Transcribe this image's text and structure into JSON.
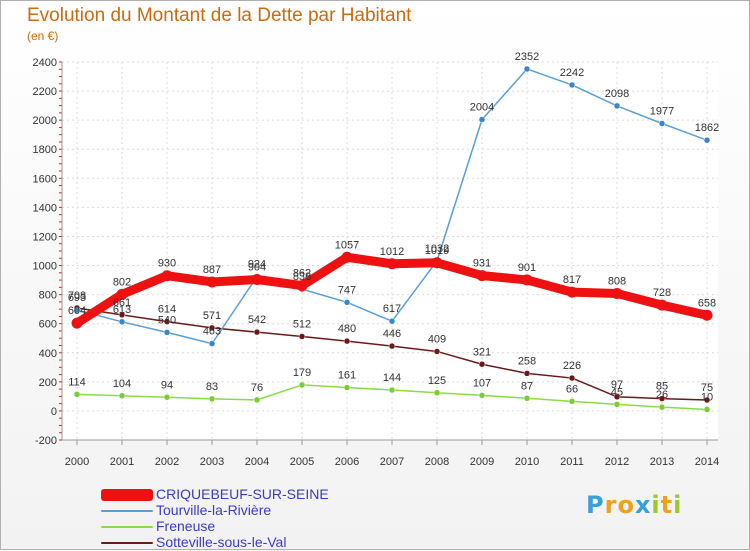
{
  "title": "Evolution du Montant de la Dette par Habitant",
  "unit_label": "(en €)",
  "logo": {
    "letters": [
      "P",
      "r",
      "o",
      "x",
      "i",
      "t",
      "i"
    ],
    "colors": [
      "#3aa0d8",
      "#f0a020",
      "#f0a020",
      "#3aa0d8",
      "#9ac830",
      "#f0a020",
      "#9ac830"
    ]
  },
  "chart_data": {
    "type": "line",
    "x": [
      "2000",
      "2001",
      "2002",
      "2003",
      "2004",
      "2005",
      "2006",
      "2007",
      "2008",
      "2009",
      "2010",
      "2011",
      "2012",
      "2013",
      "2014"
    ],
    "ylim": [
      -200,
      2400
    ],
    "yticks": [
      "-200",
      "0",
      "200",
      "400",
      "600",
      "800",
      "1000",
      "1200",
      "1400",
      "1600",
      "1800",
      "2000",
      "2200",
      "2400"
    ],
    "grid": true,
    "legend_position": "bottom-left",
    "series": [
      {
        "name": "CRIQUEBEUF-SUR-SEINE",
        "color": "#ee1111",
        "values": [
          604,
          802,
          930,
          887,
          904,
          862,
          1057,
          1012,
          1019,
          931,
          901,
          817,
          808,
          728,
          658
        ],
        "labels": [
          "604",
          "802",
          "930",
          "887",
          "904",
          "862",
          "1057",
          "1012",
          "1019",
          "931",
          "901",
          "817",
          "808",
          "728",
          "658"
        ]
      },
      {
        "name": "Tourville-la-Rivière",
        "color": "#5a9fd4",
        "values": [
          693,
          613,
          540,
          463,
          924,
          838,
          747,
          617,
          1032,
          2004,
          2352,
          2242,
          2098,
          1977,
          1862
        ],
        "labels": [
          "693",
          "613",
          "540",
          "463",
          "924",
          "838",
          "747",
          "617",
          "1032",
          "2004",
          "2352",
          "2242",
          "2098",
          "1977",
          "1862"
        ]
      },
      {
        "name": "Freneuse",
        "color": "#88dd44",
        "values": [
          114,
          104,
          94,
          83,
          76,
          179,
          161,
          144,
          125,
          107,
          87,
          66,
          45,
          26,
          10
        ],
        "labels": [
          "114",
          "104",
          "94",
          "83",
          "76",
          "179",
          "161",
          "144",
          "125",
          "107",
          "87",
          "66",
          "45",
          "26",
          "10"
        ]
      },
      {
        "name": "Sotteville-sous-le-Val",
        "color": "#6b1a1a",
        "values": [
          708,
          661,
          614,
          571,
          542,
          512,
          480,
          446,
          409,
          321,
          258,
          226,
          97,
          85,
          75
        ],
        "labels": [
          "708",
          "661",
          "614",
          "571",
          "542",
          "512",
          "480",
          "446",
          "409",
          "321",
          "258",
          "226",
          "97",
          "85",
          "75"
        ]
      }
    ]
  }
}
